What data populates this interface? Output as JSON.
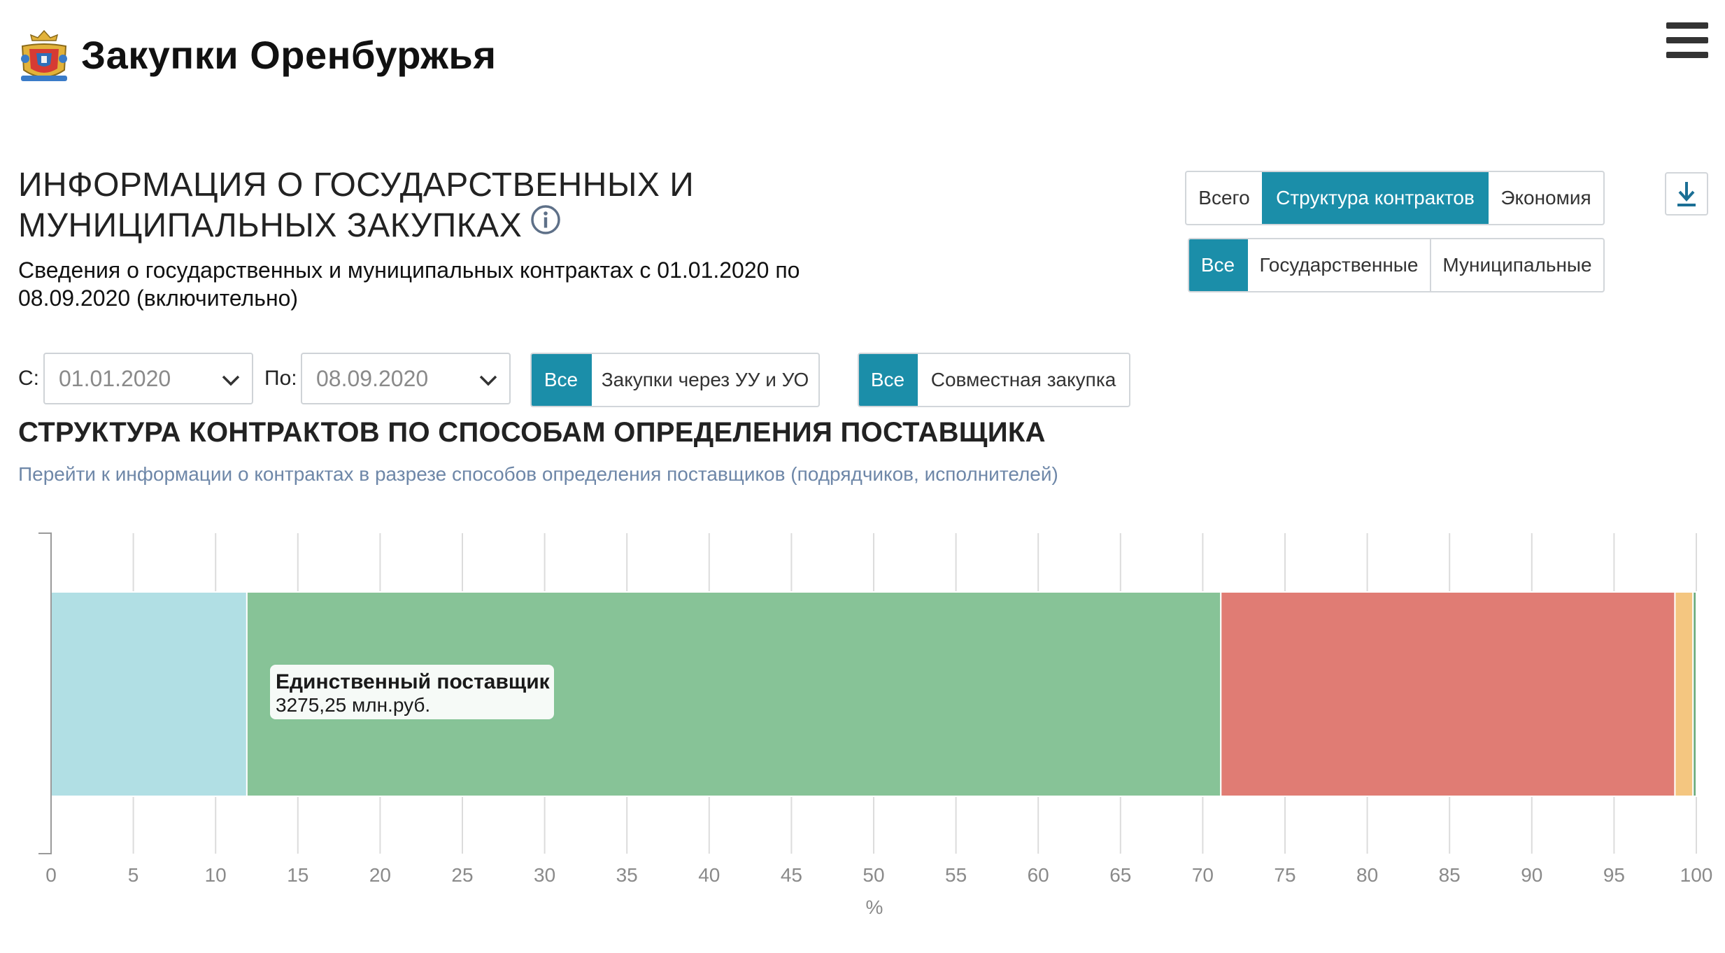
{
  "header": {
    "brand": "Закупки Оренбуржья",
    "logo_icon": "coat-of-arms-icon",
    "menu_icon": "hamburger-menu-icon"
  },
  "page": {
    "title": "ИНФОРМАЦИЯ О ГОСУДАРСТВЕННЫХ И МУНИЦИПАЛЬНЫХ ЗАКУПКАХ",
    "info_icon": "info-icon",
    "subtitle": "Сведения о государственных и муниципальных контрактах с 01.01.2020 по 08.09.2020 (включительно)"
  },
  "view_tabs": {
    "options": [
      "Всего",
      "Структура контрактов",
      "Экономия"
    ],
    "active": "Структура контрактов"
  },
  "type_tabs": {
    "options": [
      "Все",
      "Государственные",
      "Муниципальные"
    ],
    "active": "Все"
  },
  "download_icon": "download-icon",
  "filters": {
    "from_label": "С:",
    "from_value": "01.01.2020",
    "to_label": "По:",
    "to_value": "08.09.2020",
    "uu_toggle": {
      "options": [
        "Все",
        "Закупки через УУ и УО"
      ],
      "active": "Все"
    },
    "joint_toggle": {
      "options": [
        "Все",
        "Совместная закупка"
      ],
      "active": "Все"
    }
  },
  "chart_section": {
    "title": "СТРУКТУРА КОНТРАКТОВ ПО СПОСОБАМ ОПРЕДЕЛЕНИЯ ПОСТАВЩИКА",
    "link": "Перейти к информации о контрактах в разрезе способов определения поставщиков (подрядчиков, исполнителей)",
    "tooltip": {
      "title": "Единственный поставщик",
      "value": "3275,25 млн.руб."
    }
  },
  "chart_data": {
    "type": "bar",
    "orientation": "horizontal",
    "stacked": true,
    "xlabel": "%",
    "xlim": [
      0,
      100
    ],
    "xticks": [
      0,
      5,
      10,
      15,
      20,
      25,
      30,
      35,
      40,
      45,
      50,
      55,
      60,
      65,
      70,
      75,
      80,
      85,
      90,
      95,
      100
    ],
    "grid": true,
    "series": [
      {
        "values": [
          11.9
        ],
        "color": "#b1dfe4"
      },
      {
        "name": "Единственный поставщик",
        "values": [
          59.2
        ],
        "color": "#87c397"
      },
      {
        "values": [
          27.6
        ],
        "color": "#e07c74"
      },
      {
        "values": [
          1.1
        ],
        "color": "#f4c680"
      },
      {
        "values": [
          0.2
        ],
        "color": "#6cab7c"
      }
    ]
  }
}
